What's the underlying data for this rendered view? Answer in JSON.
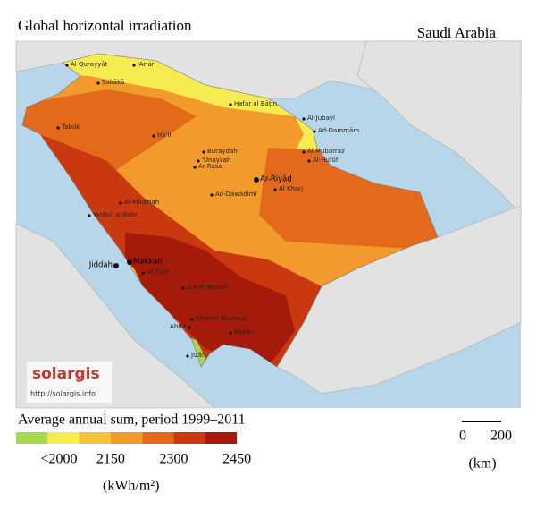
{
  "title": "Global horizontal irradiation",
  "region": "Saudi Arabia",
  "cities": [
    "Al Qurayyāt",
    "'Ar'ar",
    "Sakākā",
    "Ḥafar al Bāṭin",
    "Al-Jubayl",
    "Ad-Dammām",
    "Tabūk",
    "Ḥā'il",
    "Buraydah",
    "'Unayzah",
    "Ar Rass",
    "Al Mubarraz",
    "Al-Hufūf",
    "Ar-Riyāḍ",
    "Al Kharj",
    "Ad-Dawādimī",
    "Al-Madīnah",
    "Yanbu' al-Bahr",
    "Jiddah",
    "Makkah",
    "Aṭ Ṭā'if",
    "Qal'at Bīshah",
    "Khamīs Mushayṭ",
    "Abhā",
    "Najrān",
    "Jīzān"
  ],
  "logo": {
    "name": "solargis",
    "url": "http://solargis.info"
  },
  "legend": {
    "title": "Average annual sum, period 1999–2011",
    "colors": [
      "#a8d84d",
      "#f6ec52",
      "#f6c23e",
      "#f29a2b",
      "#e36a1b",
      "#c9380f",
      "#a51a0a"
    ],
    "labels": [
      "<2000",
      "2150",
      "2300",
      "2450"
    ],
    "unit": "(kWh/m²)"
  },
  "scale": {
    "labels": [
      "0",
      "200"
    ],
    "unit": "(km)"
  }
}
